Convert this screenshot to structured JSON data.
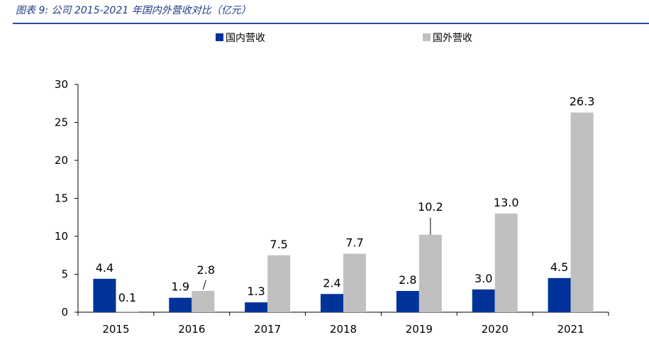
{
  "caption": "图表 9:  公司 2015-2021 年国内外营收对比（亿元）",
  "chart_data": {
    "type": "bar",
    "title": "",
    "xlabel": "",
    "ylabel": "",
    "categories": [
      "2015",
      "2016",
      "2017",
      "2018",
      "2019",
      "2020",
      "2021"
    ],
    "ylim": [
      0,
      30
    ],
    "yticks": [
      0,
      5,
      10,
      15,
      20,
      25,
      30
    ],
    "grid": false,
    "legend_position": "top",
    "series": [
      {
        "name": "国内营收",
        "color": "#003399",
        "values": [
          4.4,
          1.9,
          1.3,
          2.4,
          2.8,
          3.0,
          4.5
        ],
        "labels": [
          "4.4",
          "1.9",
          "1.3",
          "2.4",
          "2.8",
          "3.0",
          "4.5"
        ]
      },
      {
        "name": "国外营收",
        "color": "#c0c0c0",
        "values": [
          0.1,
          2.8,
          7.5,
          7.7,
          10.2,
          13.0,
          26.3
        ],
        "labels": [
          "0.1",
          "2.8",
          "7.5",
          "7.7",
          "10.2",
          "13.0",
          "26.3"
        ]
      }
    ]
  }
}
